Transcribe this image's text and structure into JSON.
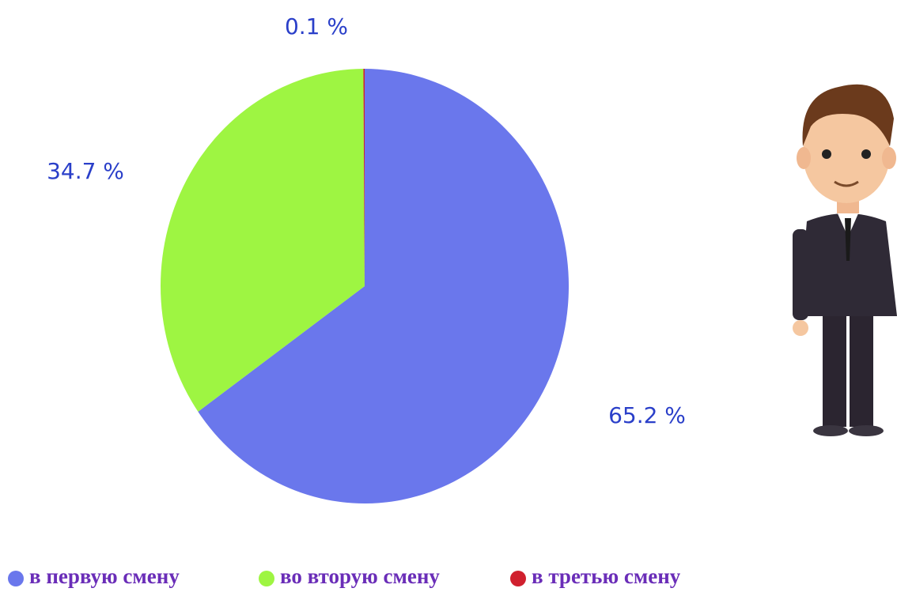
{
  "chart_data": {
    "type": "pie",
    "categories": [
      "в первую смену",
      "во вторую смену",
      "в третью смену"
    ],
    "values": [
      65.2,
      34.7,
      0.1
    ],
    "value_labels": [
      "65.2 %",
      "34.7 %",
      "0.1 %"
    ],
    "colors": [
      "#6a77ec",
      "#9ef542",
      "#d0202e"
    ]
  }
}
